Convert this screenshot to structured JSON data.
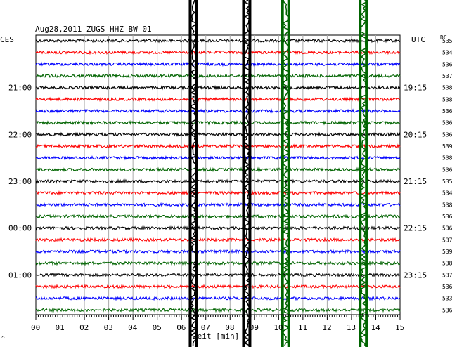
{
  "chart_data": {
    "type": "line",
    "title": "Aug28,2011   ZUGS HHZ BW 01",
    "left_axis_title": "CES",
    "right_axis_title": "UTC",
    "dc_title": "DC",
    "xlabel": "Zeit [min]",
    "xlim": [
      0,
      15
    ],
    "x_ticks": [
      "00",
      "01",
      "02",
      "03",
      "04",
      "05",
      "06",
      "07",
      "08",
      "09",
      "10",
      "11",
      "12",
      "13",
      "14",
      "15"
    ],
    "left_time_labels": [
      "21:00",
      "22:00",
      "23:00",
      "00:00",
      "01:00"
    ],
    "right_time_labels": [
      "19:15",
      "20:15",
      "21:15",
      "22:15",
      "23:15"
    ],
    "trace_colors": [
      "#000000",
      "#ff0000",
      "#0000ff",
      "#006400"
    ],
    "dc_values": [
      "535",
      "534",
      "536",
      "537",
      "538",
      "538",
      "536",
      "536",
      "536",
      "539",
      "538",
      "536",
      "535",
      "534",
      "538",
      "536",
      "536",
      "537",
      "539",
      "538",
      "537",
      "536",
      "533",
      "536"
    ],
    "seismic_events": [
      {
        "minute": 6.5,
        "color": "#000000"
      },
      {
        "minute": 8.7,
        "color": "#000000"
      },
      {
        "minute": 10.3,
        "color": "#006400"
      },
      {
        "minute": 13.5,
        "color": "#006400"
      }
    ],
    "corner_mark": "^"
  }
}
